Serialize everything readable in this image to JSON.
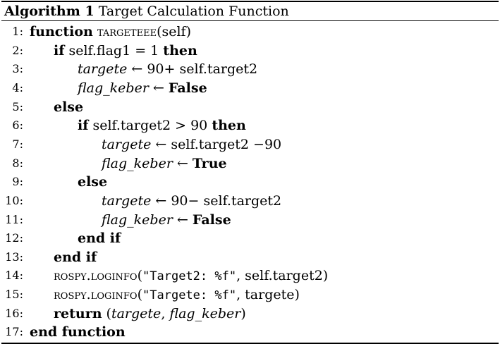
{
  "caption": {
    "label": "Algorithm 1",
    "title": "Target Calculation Function"
  },
  "lines": [
    {
      "no": "1:",
      "parts": [
        {
          "t": "function",
          "s": "kw"
        },
        {
          "t": " "
        },
        {
          "t": "targeteee",
          "s": "sc"
        },
        {
          "t": "(self)"
        }
      ]
    },
    {
      "no": "2:",
      "parts": [
        {
          "t": "if",
          "s": "kw"
        },
        {
          "t": " self.flag1 = 1 "
        },
        {
          "t": "then",
          "s": "kw"
        }
      ]
    },
    {
      "no": "3:",
      "parts": [
        {
          "t": "targete",
          "s": "it"
        },
        {
          "t": " ← 90+ self.target2"
        }
      ]
    },
    {
      "no": "4:",
      "parts": [
        {
          "t": "flag_keber",
          "s": "it"
        },
        {
          "t": " ← "
        },
        {
          "t": "False",
          "s": "kw"
        }
      ]
    },
    {
      "no": "5:",
      "parts": [
        {
          "t": "else",
          "s": "kw"
        }
      ]
    },
    {
      "no": "6:",
      "parts": [
        {
          "t": "if",
          "s": "kw"
        },
        {
          "t": " self.target2 > 90 "
        },
        {
          "t": "then",
          "s": "kw"
        }
      ]
    },
    {
      "no": "7:",
      "parts": [
        {
          "t": "targete",
          "s": "it"
        },
        {
          "t": " ← self.target2 −90"
        }
      ]
    },
    {
      "no": "8:",
      "parts": [
        {
          "t": "flag_keber",
          "s": "it"
        },
        {
          "t": " ← "
        },
        {
          "t": "True",
          "s": "kw"
        }
      ]
    },
    {
      "no": "9:",
      "parts": [
        {
          "t": "else",
          "s": "kw"
        }
      ]
    },
    {
      "no": "10:",
      "parts": [
        {
          "t": "targete",
          "s": "it"
        },
        {
          "t": " ← 90− self.target2"
        }
      ]
    },
    {
      "no": "11:",
      "parts": [
        {
          "t": "flag_keber",
          "s": "it"
        },
        {
          "t": " ← "
        },
        {
          "t": "False",
          "s": "kw"
        }
      ]
    },
    {
      "no": "12:",
      "parts": [
        {
          "t": "end if",
          "s": "kw"
        }
      ]
    },
    {
      "no": "13:",
      "parts": [
        {
          "t": "end if",
          "s": "kw"
        }
      ]
    },
    {
      "no": "14:",
      "parts": [
        {
          "t": "rospy.loginfo",
          "s": "sc"
        },
        {
          "t": "("
        },
        {
          "t": "\"Target2:  %f\"",
          "s": "tt"
        },
        {
          "t": ", self.target2)"
        }
      ]
    },
    {
      "no": "15:",
      "parts": [
        {
          "t": "rospy.loginfo",
          "s": "sc"
        },
        {
          "t": "("
        },
        {
          "t": "\"Targete:  %f\"",
          "s": "tt"
        },
        {
          "t": ", targete)"
        }
      ]
    },
    {
      "no": "16:",
      "parts": [
        {
          "t": "return",
          "s": "kw"
        },
        {
          "t": " ("
        },
        {
          "t": "targete",
          "s": "it"
        },
        {
          "t": ", "
        },
        {
          "t": "flag_keber",
          "s": "it"
        },
        {
          "t": ")"
        }
      ]
    },
    {
      "no": "17:",
      "parts": [
        {
          "t": "end function",
          "s": "kw"
        }
      ]
    }
  ]
}
